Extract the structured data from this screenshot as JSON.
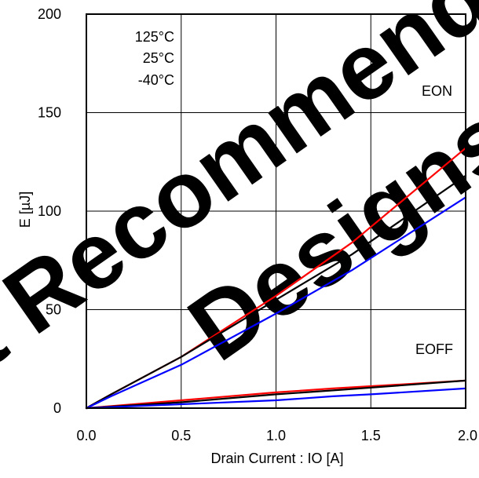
{
  "chart_data": {
    "type": "line",
    "title": "",
    "xlabel": "Drain Current : IO [A]",
    "ylabel": "E [µJ]",
    "xlim": [
      0.0,
      2.0
    ],
    "ylim": [
      0,
      200
    ],
    "x_ticks": [
      "0.0",
      "0.5",
      "1.0",
      "1.5",
      "2.0"
    ],
    "y_ticks": [
      "0",
      "50",
      "100",
      "150",
      "200"
    ],
    "grid": true,
    "legend": {
      "placement": "top-left",
      "entries": [
        "125°C",
        "25°C",
        "-40°C"
      ]
    },
    "annotations": [
      "EON",
      "EOFF"
    ],
    "watermark": "Not Recommended for New Designs",
    "series": [
      {
        "name": "125°C",
        "group": "EON",
        "color": "#ff0000",
        "points": [
          [
            0.0,
            0
          ],
          [
            0.13,
            7
          ],
          [
            0.5,
            26
          ],
          [
            1.0,
            57
          ],
          [
            1.4,
            84
          ],
          [
            2.0,
            132
          ]
        ]
      },
      {
        "name": "25°C",
        "group": "EON",
        "color": "#000000",
        "points": [
          [
            0.0,
            0
          ],
          [
            0.13,
            7
          ],
          [
            0.5,
            26
          ],
          [
            1.0,
            55
          ],
          [
            1.4,
            78
          ],
          [
            2.0,
            118
          ]
        ]
      },
      {
        "name": "-40°C",
        "group": "EON",
        "color": "#0000ff",
        "points": [
          [
            0.0,
            0
          ],
          [
            0.13,
            6
          ],
          [
            0.5,
            22
          ],
          [
            1.0,
            48
          ],
          [
            1.4,
            70
          ],
          [
            2.0,
            107
          ]
        ]
      },
      {
        "name": "125°C",
        "group": "EOFF",
        "color": "#ff0000",
        "points": [
          [
            0.0,
            0
          ],
          [
            0.5,
            4
          ],
          [
            1.0,
            8
          ],
          [
            1.3,
            10
          ],
          [
            2.0,
            14
          ]
        ]
      },
      {
        "name": "25°C",
        "group": "EOFF",
        "color": "#000000",
        "points": [
          [
            0.0,
            0
          ],
          [
            0.5,
            3
          ],
          [
            1.0,
            7
          ],
          [
            1.3,
            9
          ],
          [
            2.0,
            14
          ]
        ]
      },
      {
        "name": "-40°C",
        "group": "EOFF",
        "color": "#0000ff",
        "points": [
          [
            0.0,
            0
          ],
          [
            0.5,
            2
          ],
          [
            1.0,
            4
          ],
          [
            1.3,
            6
          ],
          [
            1.5,
            7
          ],
          [
            2.0,
            10
          ]
        ]
      }
    ]
  }
}
